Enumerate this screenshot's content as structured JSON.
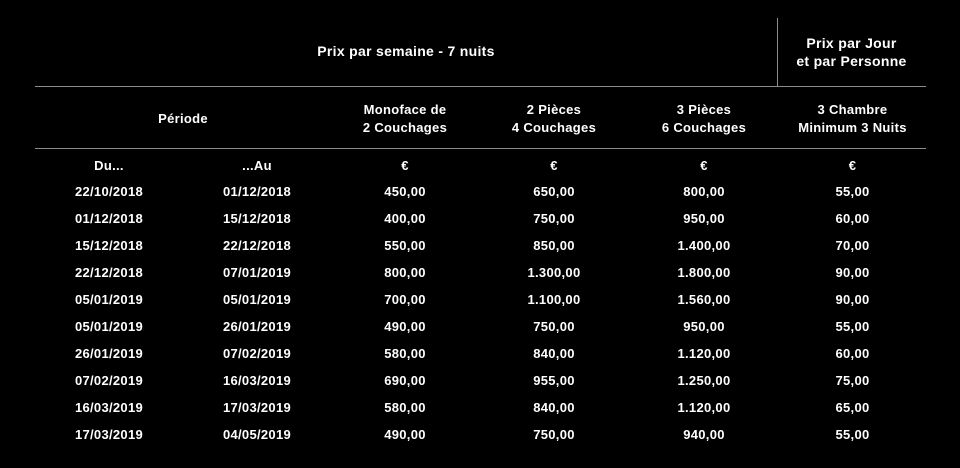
{
  "header": {
    "title_main": "Prix par semaine - 7 nuits",
    "title_side_line1": "Prix par Jour",
    "title_side_line2": "et par Personne"
  },
  "columns": {
    "periode": "Période",
    "c2_line1": "Monoface de",
    "c2_line2": "2 Couchages",
    "c3_line1": "2 Pièces",
    "c3_line2": "4 Couchages",
    "c4_line1": "3 Pièces",
    "c4_line2": "6 Couchages",
    "c5_line1": "3 Chambre",
    "c5_line2": "Minimum 3 Nuits"
  },
  "units": [
    "Du...",
    "...Au",
    "€",
    "€",
    "€",
    "€"
  ],
  "rows": [
    [
      "22/10/2018",
      "01/12/2018",
      "450,00",
      "650,00",
      "800,00",
      "55,00"
    ],
    [
      "01/12/2018",
      "15/12/2018",
      "400,00",
      "750,00",
      "950,00",
      "60,00"
    ],
    [
      "15/12/2018",
      "22/12/2018",
      "550,00",
      "850,00",
      "1.400,00",
      "70,00"
    ],
    [
      "22/12/2018",
      "07/01/2019",
      "800,00",
      "1.300,00",
      "1.800,00",
      "90,00"
    ],
    [
      "05/01/2019",
      "05/01/2019",
      "700,00",
      "1.100,00",
      "1.560,00",
      "90,00"
    ],
    [
      "05/01/2019",
      "26/01/2019",
      "490,00",
      "750,00",
      "950,00",
      "55,00"
    ],
    [
      "26/01/2019",
      "07/02/2019",
      "580,00",
      "840,00",
      "1.120,00",
      "60,00"
    ],
    [
      "07/02/2019",
      "16/03/2019",
      "690,00",
      "955,00",
      "1.250,00",
      "75,00"
    ],
    [
      "16/03/2019",
      "17/03/2019",
      "580,00",
      "840,00",
      "1.120,00",
      "65,00"
    ],
    [
      "17/03/2019",
      "04/05/2019",
      "490,00",
      "750,00",
      "940,00",
      "55,00"
    ]
  ]
}
